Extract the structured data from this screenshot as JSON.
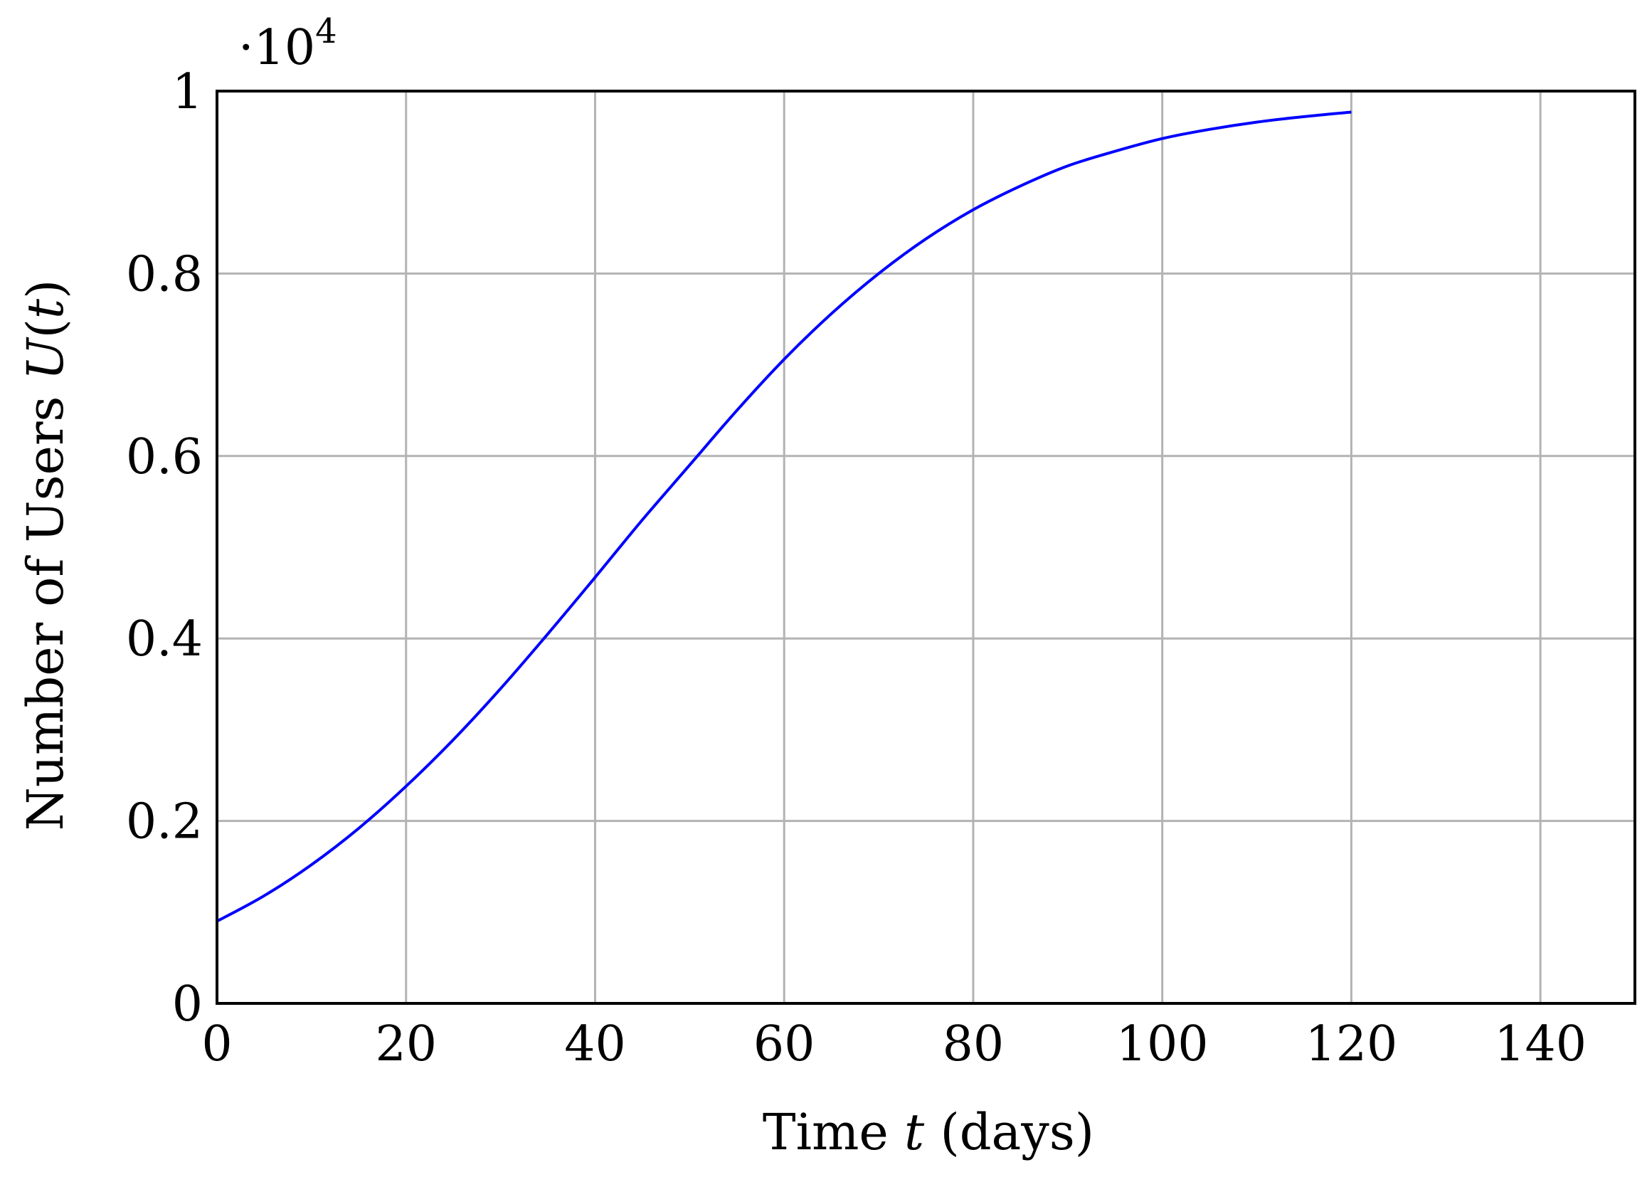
{
  "chart_data": {
    "type": "line",
    "title": "",
    "xlabel": {
      "before": "Time ",
      "var": "t",
      "after": " (days)"
    },
    "ylabel": {
      "before": "Number of Users ",
      "var": "U",
      "open": "(",
      "arg": "t",
      "close": ")"
    },
    "y_scale_label": {
      "prefix": "·10",
      "exponent": "4"
    },
    "xlim": [
      0,
      150
    ],
    "ylim": [
      0,
      1
    ],
    "x_ticks": [
      0,
      20,
      40,
      60,
      80,
      100,
      120,
      140
    ],
    "y_ticks": [
      0,
      0.2,
      0.4,
      0.6,
      0.8,
      1
    ],
    "x_tick_labels": [
      "0",
      "20",
      "40",
      "60",
      "80",
      "100",
      "120",
      "140"
    ],
    "y_tick_labels": [
      "0",
      "0.2",
      "0.4",
      "0.6",
      "0.8",
      "1"
    ],
    "grid": true,
    "series": [
      {
        "color": "#0000ff",
        "x": [
          0,
          5,
          10,
          15,
          20,
          25,
          30,
          35,
          40,
          45,
          50,
          55,
          60,
          65,
          70,
          75,
          80,
          85,
          90,
          95,
          100,
          105,
          110,
          115,
          120
        ],
        "y": [
          0.09,
          0.118,
          0.152,
          0.192,
          0.238,
          0.289,
          0.345,
          0.405,
          0.467,
          0.53,
          0.59,
          0.65,
          0.706,
          0.756,
          0.8,
          0.838,
          0.87,
          0.896,
          0.918,
          0.934,
          0.948,
          0.958,
          0.966,
          0.972,
          0.977
        ]
      }
    ]
  }
}
